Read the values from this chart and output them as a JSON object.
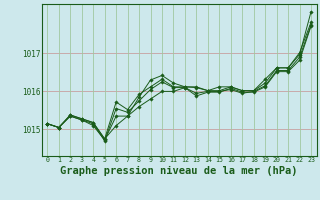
{
  "background_color": "#cde8ec",
  "grid_color_h": "#c8a0a0",
  "grid_color_v": "#a0c8a0",
  "line_color": "#1a5c1a",
  "marker_color": "#1a5c1a",
  "xlabel": "Graphe pression niveau de la mer (hPa)",
  "xlabel_fontsize": 7.5,
  "ylabel_ticks": [
    1015,
    1016,
    1017
  ],
  "xlim": [
    -0.5,
    23.5
  ],
  "ylim": [
    1014.3,
    1018.3
  ],
  "x_ticks": [
    0,
    1,
    2,
    3,
    4,
    5,
    6,
    7,
    8,
    9,
    10,
    11,
    12,
    13,
    14,
    15,
    16,
    17,
    18,
    19,
    20,
    21,
    22,
    23
  ],
  "series": [
    [
      1015.15,
      1015.05,
      1015.35,
      1015.25,
      1015.15,
      1014.7,
      1015.55,
      1015.45,
      1015.75,
      1016.05,
      1016.25,
      1016.1,
      1016.1,
      1015.95,
      1016.0,
      1016.0,
      1016.05,
      1015.95,
      1016.0,
      1016.15,
      1016.55,
      1016.55,
      1016.9,
      1017.75
    ],
    [
      1015.15,
      1015.05,
      1015.35,
      1015.25,
      1015.1,
      1014.72,
      1015.35,
      1015.35,
      1015.6,
      1015.8,
      1016.0,
      1016.0,
      1016.1,
      1015.88,
      1015.98,
      1015.98,
      1016.08,
      1015.98,
      1015.98,
      1016.12,
      1016.52,
      1016.52,
      1016.82,
      1017.72
    ],
    [
      1015.15,
      1015.05,
      1015.38,
      1015.28,
      1015.18,
      1014.75,
      1015.1,
      1015.35,
      1015.85,
      1016.3,
      1016.42,
      1016.22,
      1016.12,
      1016.1,
      1016.02,
      1016.12,
      1016.12,
      1016.02,
      1016.02,
      1016.22,
      1016.62,
      1016.62,
      1017.02,
      1017.82
    ],
    [
      1015.15,
      1015.05,
      1015.38,
      1015.28,
      1015.18,
      1014.75,
      1015.72,
      1015.52,
      1015.92,
      1016.12,
      1016.32,
      1016.12,
      1016.12,
      1016.12,
      1016.02,
      1016.02,
      1016.12,
      1016.02,
      1016.02,
      1016.32,
      1016.62,
      1016.62,
      1016.97,
      1018.1
    ]
  ]
}
